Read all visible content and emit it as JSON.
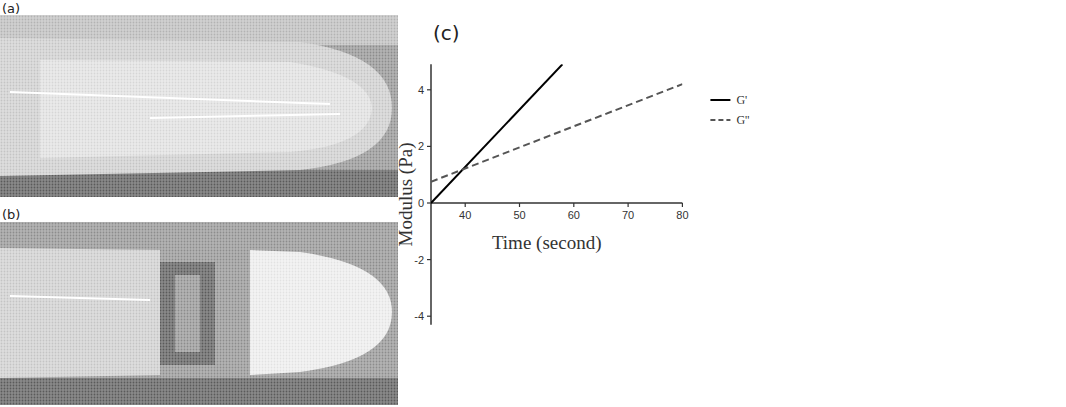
{
  "panel_labels": [
    "(a)",
    "(b)",
    "(c)"
  ],
  "chart_data": {
    "type": "line",
    "x_label": "Time (second)",
    "y_label": "Modulus (Pa)",
    "xlim": [
      33.7,
      80
    ],
    "ylim": [
      -4.3,
      4.9
    ],
    "xticks": [
      40,
      50,
      60,
      70,
      80
    ],
    "yticks": [
      -4,
      -2,
      0,
      2,
      4
    ],
    "grid": false,
    "legend": "right",
    "series": [
      {
        "name": "G'",
        "color": "#000000",
        "line_style": "solid",
        "x": [
          33.7,
          57.9
        ],
        "values": [
          0,
          4.9
        ]
      },
      {
        "name": "G''",
        "color": "#555555",
        "line_style": "dashed",
        "x": [
          33.7,
          80
        ],
        "values": [
          0.75,
          4.2
        ]
      }
    ]
  }
}
